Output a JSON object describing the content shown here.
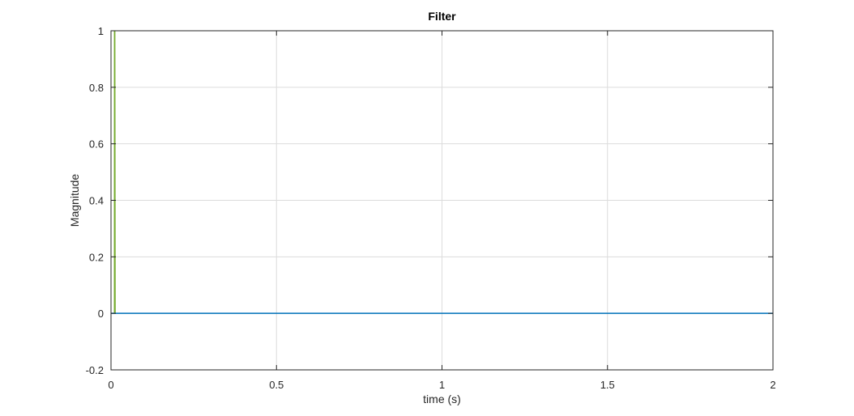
{
  "chart_data": {
    "type": "line",
    "title": "Filter",
    "xlabel": "time (s)",
    "ylabel": "Magnitude",
    "xlim": [
      0,
      2
    ],
    "ylim": [
      -0.2,
      1
    ],
    "xticks": [
      0,
      0.5,
      1,
      1.5,
      2
    ],
    "xtick_labels": [
      "0",
      "0.5",
      "1",
      "1.5",
      "2"
    ],
    "yticks": [
      -0.2,
      0,
      0.2,
      0.4,
      0.6,
      0.8,
      1
    ],
    "ytick_labels": [
      "-0.2",
      "0",
      "0.2",
      "0.4",
      "0.6",
      "0.8",
      "1"
    ],
    "grid": true,
    "series": [
      {
        "color": "#77ac30",
        "x": [
          0,
          0.0099,
          0.01,
          0.011,
          0.012,
          0.013,
          2
        ],
        "y": [
          0,
          0,
          1,
          0,
          1,
          0,
          0
        ]
      },
      {
        "color": "#0072bd",
        "x": [
          0,
          0.0125,
          0.015,
          0.1,
          0.25,
          0.5,
          0.75,
          1.0,
          1.25,
          1.5,
          1.75,
          2.0
        ],
        "y": [
          0,
          0,
          0,
          0,
          0,
          0,
          0,
          0,
          0,
          0,
          0,
          0
        ]
      }
    ]
  }
}
